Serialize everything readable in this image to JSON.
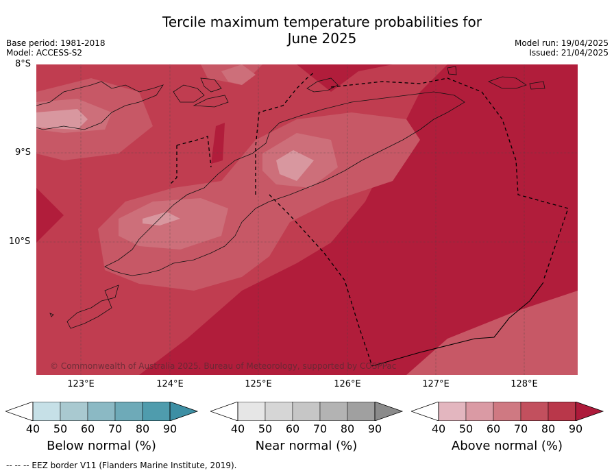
{
  "title_line1": "Tercile maximum temperature probabilities for",
  "title_line2": "June 2025",
  "meta_left": [
    "Base period: 1981-2018",
    "Model: ACCESS-S2"
  ],
  "meta_right": [
    "Model run: 19/04/2025",
    "Issued: 21/04/2025"
  ],
  "lat_labels": [
    "8°S",
    "9°S",
    "10°S"
  ],
  "lon_labels": [
    "123°E",
    "124°E",
    "125°E",
    "126°E",
    "127°E",
    "128°E"
  ],
  "copyright": "© Commonwealth of Australia 2025. Bureau of Meteorology, supported by COSPPac",
  "colorbars": [
    {
      "label": "Below normal (%)",
      "ticks": [
        "40",
        "50",
        "60",
        "70",
        "80",
        "90"
      ],
      "colors": [
        "#c6e0e7",
        "#a9c9d0",
        "#8bb9c4",
        "#6eaab8",
        "#4f9cad"
      ],
      "over": "#3d8fa4"
    },
    {
      "label": "Near normal (%)",
      "ticks": [
        "40",
        "50",
        "60",
        "70",
        "80",
        "90"
      ],
      "colors": [
        "#e6e6e6",
        "#d6d6d6",
        "#c6c6c6",
        "#b3b3b3",
        "#a0a0a0"
      ],
      "over": "#8b8b8b"
    },
    {
      "label": "Above normal (%)",
      "ticks": [
        "40",
        "50",
        "60",
        "70",
        "80",
        "90"
      ],
      "colors": [
        "#e3b6bf",
        "#da9aa4",
        "#cf7982",
        "#c2505e",
        "#b9374a"
      ],
      "over": "#ad1a3a"
    }
  ],
  "footer": "--  --  -- EEZ border V11 (Flanders Marine Institute, 2019).",
  "map_colors": {
    "c60": "#cd6f7a",
    "c70": "#c75866",
    "c80": "#c03d50",
    "c90": "#b11d3b",
    "c50": "#d8979f"
  }
}
